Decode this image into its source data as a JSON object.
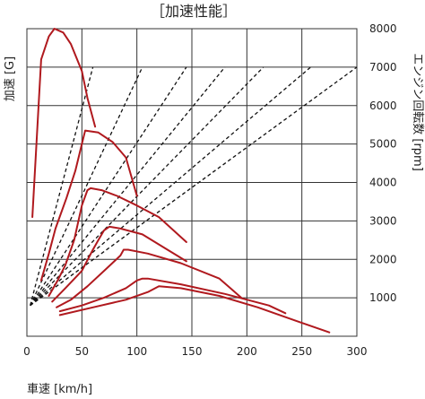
{
  "chart_data": {
    "type": "line",
    "title": "［加速性能］",
    "xlabel": "車速 [km/h]",
    "ylabel_left": "加速 [G]",
    "ylabel_right": "エンジン回転数 [rpm]",
    "xlim": [
      0,
      300
    ],
    "ylim_right": [
      0,
      8000
    ],
    "x_ticks": [
      "0",
      "50",
      "100",
      "150",
      "200",
      "250",
      "300"
    ],
    "y_right_ticks": [
      "1000",
      "2000",
      "3000",
      "4000",
      "5000",
      "6000",
      "7000",
      "8000"
    ],
    "grid": true,
    "colors": {
      "accel": "#b0191e",
      "gear_line": "#111111",
      "grid": "#333333"
    },
    "series": [
      {
        "x": [
          5,
          13,
          20,
          25,
          33,
          40,
          50,
          55,
          62
        ],
        "y": [
          3100,
          7200,
          7800,
          8000,
          7900,
          7600,
          6900,
          6200,
          5450
        ]
      },
      {
        "x": [
          13,
          20,
          26,
          36,
          44,
          50,
          53,
          65,
          78,
          90,
          93,
          100
        ],
        "y": [
          1450,
          2150,
          2800,
          3600,
          4300,
          5000,
          5350,
          5300,
          5050,
          4650,
          4350,
          3650
        ]
      },
      {
        "x": [
          20,
          28,
          35,
          43,
          50,
          55,
          58,
          68,
          82,
          100,
          120,
          145
        ],
        "y": [
          1050,
          1450,
          1850,
          2500,
          3400,
          3800,
          3850,
          3800,
          3650,
          3400,
          3100,
          2450
        ]
      },
      {
        "x": [
          23,
          35,
          50,
          60,
          65,
          70,
          75,
          85,
          105,
          125,
          145
        ],
        "y": [
          900,
          1250,
          1700,
          2250,
          2500,
          2750,
          2850,
          2800,
          2650,
          2300,
          1950
        ]
      },
      {
        "x": [
          27,
          40,
          55,
          72,
          85,
          88,
          92,
          110,
          140,
          175,
          195
        ],
        "y": [
          750,
          950,
          1300,
          1750,
          2100,
          2250,
          2250,
          2150,
          1900,
          1500,
          1000
        ]
      },
      {
        "x": [
          30,
          50,
          70,
          90,
          100,
          105,
          110,
          140,
          180,
          220,
          235
        ],
        "y": [
          650,
          800,
          1000,
          1250,
          1450,
          1500,
          1500,
          1350,
          1100,
          800,
          600
        ]
      },
      {
        "x": [
          30,
          60,
          90,
          110,
          120,
          140,
          175,
          210,
          245,
          275
        ],
        "y": [
          550,
          750,
          950,
          1150,
          1300,
          1250,
          1050,
          750,
          400,
          100
        ]
      }
    ],
    "gear_lines": [
      {
        "x": [
          3,
          60
        ],
        "y": [
          800,
          7000
        ]
      },
      {
        "x": [
          3,
          105
        ],
        "y": [
          800,
          7000
        ]
      },
      {
        "x": [
          3,
          145
        ],
        "y": [
          800,
          7000
        ]
      },
      {
        "x": [
          3,
          180
        ],
        "y": [
          800,
          7000
        ]
      },
      {
        "x": [
          3,
          215
        ],
        "y": [
          800,
          7000
        ]
      },
      {
        "x": [
          3,
          258
        ],
        "y": [
          800,
          7000
        ]
      },
      {
        "x": [
          3,
          300
        ],
        "y": [
          800,
          7000
        ]
      }
    ]
  }
}
